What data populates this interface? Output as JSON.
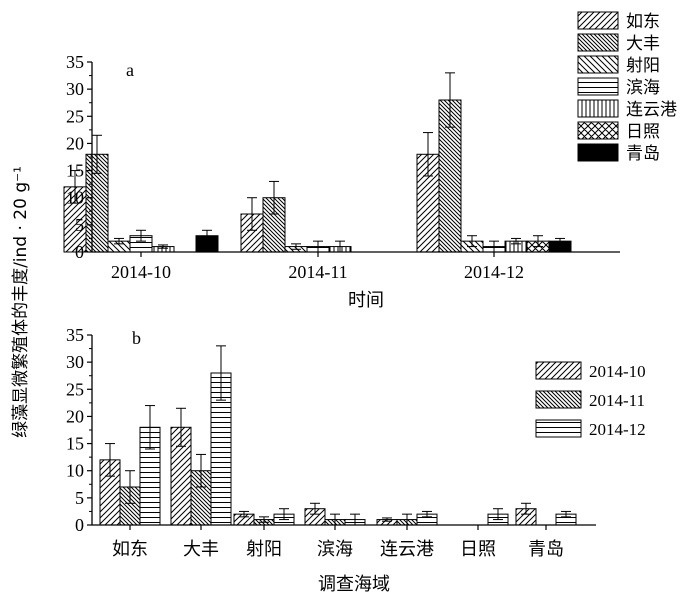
{
  "ylabel": "绿藻显微繁殖体的丰度/ind · 20 g⁻¹",
  "chart_data": [
    {
      "type": "bar",
      "panel_label": "a",
      "xlabel": "时间",
      "categories": [
        "2014-10",
        "2014-11",
        "2014-12"
      ],
      "ylim": [
        0,
        35
      ],
      "yticks": [
        0,
        5,
        10,
        15,
        20,
        25,
        30,
        35
      ],
      "legend_position": "top-right",
      "series": [
        {
          "name": "如东",
          "pattern": "diag-fwd",
          "values": [
            12,
            7,
            18
          ],
          "errors": [
            3,
            3,
            4
          ]
        },
        {
          "name": "大丰",
          "pattern": "diag-back-dense",
          "values": [
            18,
            10,
            28
          ],
          "errors": [
            3.5,
            3,
            5
          ]
        },
        {
          "name": "射阳",
          "pattern": "diag-back",
          "values": [
            2,
            1,
            2
          ],
          "errors": [
            0.5,
            0.5,
            1
          ]
        },
        {
          "name": "滨海",
          "pattern": "horizontal",
          "values": [
            3,
            1,
            1
          ],
          "errors": [
            1,
            1,
            1
          ]
        },
        {
          "name": "连云港",
          "pattern": "vertical",
          "values": [
            1,
            1,
            2
          ],
          "errors": [
            0.3,
            1,
            0.5
          ]
        },
        {
          "name": "日照",
          "pattern": "crosshatch",
          "values": [
            0,
            0,
            2
          ],
          "errors": [
            0,
            0,
            1
          ]
        },
        {
          "name": "青岛",
          "pattern": "solid",
          "values": [
            3,
            0,
            2
          ],
          "errors": [
            1,
            0,
            0.5
          ]
        }
      ]
    },
    {
      "type": "bar",
      "panel_label": "b",
      "xlabel": "调查海域",
      "categories": [
        "如东",
        "大丰",
        "射阳",
        "滨海",
        "连云港",
        "日照",
        "青岛"
      ],
      "ylim": [
        0,
        35
      ],
      "yticks": [
        0,
        5,
        10,
        15,
        20,
        25,
        30,
        35
      ],
      "legend_position": "right",
      "series": [
        {
          "name": "2014-10",
          "pattern": "diag-fwd",
          "values": [
            12,
            18,
            2,
            3,
            1,
            0,
            3
          ],
          "errors": [
            3,
            3.5,
            0.5,
            1,
            0.3,
            0,
            1
          ]
        },
        {
          "name": "2014-11",
          "pattern": "diag-back-dense",
          "values": [
            7,
            10,
            1,
            1,
            1,
            0,
            0
          ],
          "errors": [
            3,
            3,
            0.5,
            1,
            1,
            0,
            0
          ]
        },
        {
          "name": "2014-12",
          "pattern": "horizontal",
          "values": [
            18,
            28,
            2,
            1,
            2,
            2,
            2
          ],
          "errors": [
            4,
            5,
            1,
            1,
            0.5,
            1,
            0.5
          ]
        }
      ]
    }
  ]
}
